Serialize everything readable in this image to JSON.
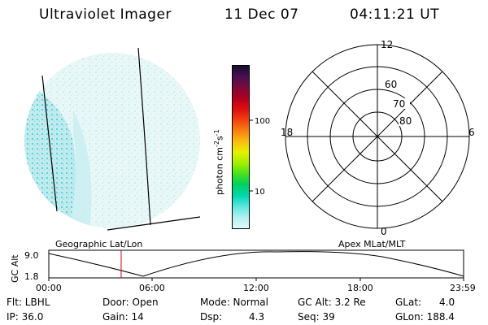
{
  "header": {
    "instrument": "Ultraviolet Imager",
    "date": "11 Dec 07",
    "time": "04:11:21 UT"
  },
  "colorbar": {
    "label": "photon cm",
    "label_sup1": "-2",
    "label_mid": "s",
    "label_sup2": "-1",
    "ticks": [
      {
        "label": "100",
        "value": 100
      },
      {
        "label": "10",
        "value": 10
      }
    ],
    "colors": [
      "#1a0a33",
      "#4a1050",
      "#7a0a3a",
      "#b00020",
      "#e01010",
      "#f04010",
      "#f88010",
      "#f8c010",
      "#e8f000",
      "#a0f000",
      "#40e020",
      "#00d060",
      "#00d8b0",
      "#60e8e0",
      "#b0f0f0",
      "#e0f8f8"
    ]
  },
  "polar_plot": {
    "lat_labels": [
      "60",
      "70",
      "80"
    ],
    "mlt_labels": {
      "top": "12",
      "left": "18",
      "right": "6",
      "bottom": "0"
    }
  },
  "timeline": {
    "left_label": "Geographic Lat/Lon",
    "right_label": "Apex MLat/MLT",
    "ylabel": "GC Alt",
    "y_ticks": [
      "9.0",
      "1.8"
    ],
    "x_ticks": [
      "00:00",
      "06:00",
      "12:00",
      "18:00",
      "23:59"
    ],
    "marker_time": "04:11",
    "marker_color": "#cc0000"
  },
  "info": {
    "flt": "Flt: LBHL",
    "door": "Door: Open",
    "mode": "Mode: Normal",
    "gc_alt": "GC Alt: 3.2 Re",
    "glat": "GLat:",
    "glat_value": "4.0",
    "ip": "IP: 36.0",
    "gain": "Gain: 14",
    "dsp": "Dsp:",
    "dsp_value": "4.3",
    "seq": "Seq: 39",
    "glon": "GLon: 188.4"
  }
}
